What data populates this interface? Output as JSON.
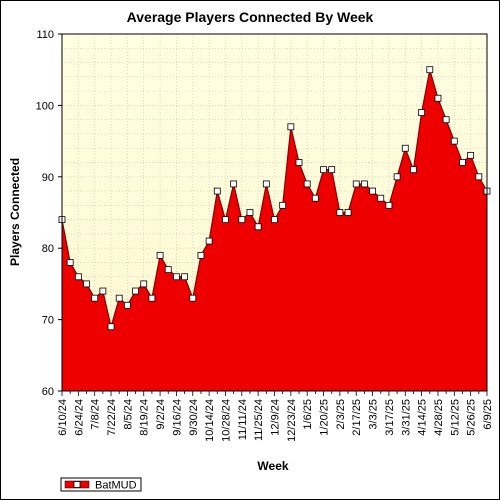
{
  "chart_data": {
    "type": "area",
    "title": "Average Players Connected By Week",
    "xlabel": "Week",
    "ylabel": "Players Connected",
    "ylim": [
      60,
      110
    ],
    "yticks": [
      60,
      70,
      80,
      90,
      100,
      110
    ],
    "xtick_labels": [
      "6/10/24",
      "6/24/24",
      "7/8/24",
      "7/22/24",
      "8/5/24",
      "8/19/24",
      "9/2/24",
      "9/16/24",
      "9/30/24",
      "10/14/24",
      "10/28/24",
      "11/11/24",
      "11/25/24",
      "12/9/24",
      "12/23/24",
      "1/6/25",
      "1/20/25",
      "2/3/25",
      "2/17/25",
      "3/3/25",
      "3/17/25",
      "3/31/25",
      "4/14/25",
      "4/28/25",
      "5/12/25",
      "5/26/25",
      "6/9/25"
    ],
    "grid": true,
    "legend": "bottom-left",
    "series": [
      {
        "name": "BatMUD",
        "color": "#ee0000",
        "values": [
          84,
          78,
          76,
          75,
          73,
          74,
          69,
          73,
          72,
          74,
          75,
          73,
          79,
          77,
          76,
          76,
          73,
          79,
          81,
          88,
          84,
          89,
          84,
          85,
          83,
          89,
          84,
          86,
          97,
          92,
          89,
          87,
          91,
          91,
          85,
          85,
          89,
          89,
          88,
          87,
          86,
          90,
          94,
          91,
          99,
          105,
          101,
          98,
          95,
          92,
          93,
          90,
          88
        ]
      }
    ]
  }
}
